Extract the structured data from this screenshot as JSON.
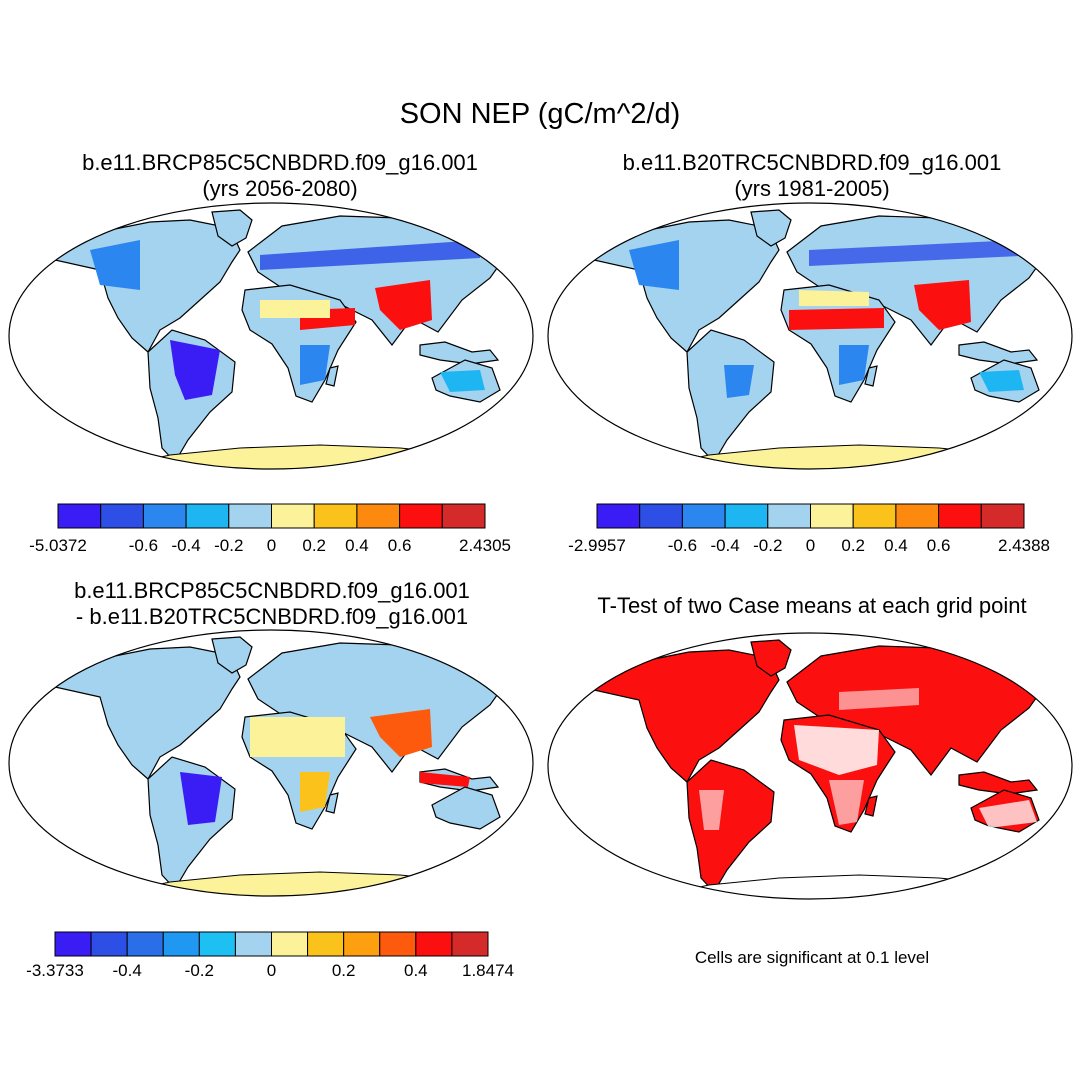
{
  "figure": {
    "title": "SON NEP (gC/m^2/d)"
  },
  "panels": [
    {
      "title_line1": "b.e11.BRCP85C5CNBDRD.f09_g16.001",
      "title_line2": "(yrs 2056-2080)",
      "colorbar": {
        "colors": [
          "#3a1df5",
          "#2d4fe6",
          "#2b86f0",
          "#1eb6f2",
          "#a3d3ee",
          "#fbf29a",
          "#fcc21c",
          "#fd8a0e",
          "#fb0f0f",
          "#d52a2a"
        ],
        "labels": [
          "-5.0372",
          "-0.6",
          "-0.4",
          "-0.2",
          "0",
          "0.2",
          "0.4",
          "0.6",
          "2.4305"
        ]
      }
    },
    {
      "title_line1": "b.e11.B20TRC5CNBDRD.f09_g16.001",
      "title_line2": "(yrs 1981-2005)",
      "colorbar": {
        "colors": [
          "#3a1df5",
          "#2d4fe6",
          "#2b86f0",
          "#1eb6f2",
          "#a3d3ee",
          "#fbf29a",
          "#fcc21c",
          "#fd8a0e",
          "#fb0f0f",
          "#d52a2a"
        ],
        "labels": [
          "-2.9957",
          "-0.6",
          "-0.4",
          "-0.2",
          "0",
          "0.2",
          "0.4",
          "0.6",
          "2.4388"
        ]
      }
    },
    {
      "title_line1": "b.e11.BRCP85C5CNBDRD.f09_g16.001",
      "title_line2": "- b.e11.B20TRC5CNBDRD.f09_g16.001",
      "colorbar": {
        "colors": [
          "#3a1df5",
          "#2d4fe6",
          "#2b6fe8",
          "#1e98f0",
          "#1ec0f4",
          "#a3d3ee",
          "#fbf29a",
          "#fcc21c",
          "#fd9f0e",
          "#fd5a0e",
          "#fb0f0f",
          "#d52a2a"
        ],
        "labels": [
          "-3.3733",
          "-0.4",
          "-0.2",
          "0",
          "0.2",
          "0.4",
          "1.8474"
        ]
      }
    },
    {
      "title_line1": "T-Test of two Case means at each grid point",
      "note": "Cells are significant at 0.1 level",
      "significant_color": "#fb0f0f"
    }
  ]
}
